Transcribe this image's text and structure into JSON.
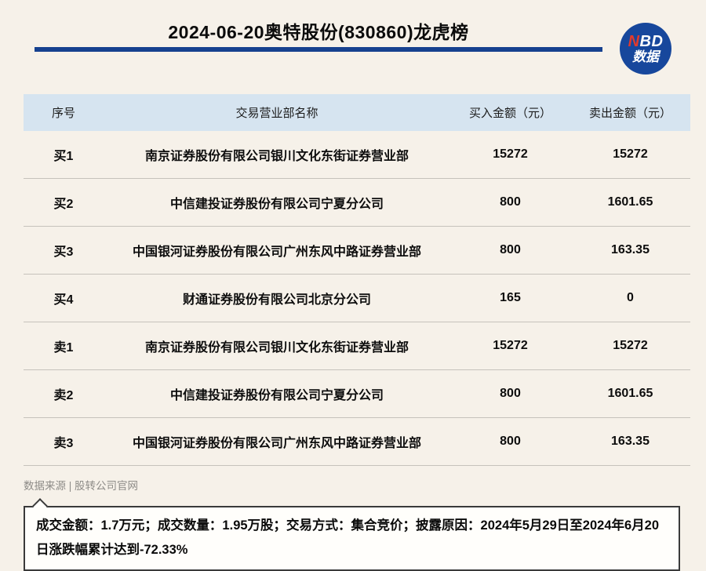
{
  "header": {
    "title": "2024-06-20奥特股份(830860)龙虎榜",
    "logo": {
      "line1_first": "N",
      "line1_rest": "BD",
      "line2": "数据"
    }
  },
  "table": {
    "columns": [
      "序号",
      "交易营业部名称",
      "买入金额（元）",
      "卖出金额（元）"
    ],
    "rows": [
      {
        "rank": "买1",
        "broker": "南京证券股份有限公司银川文化东街证券营业部",
        "buy": "15272",
        "sell": "15272"
      },
      {
        "rank": "买2",
        "broker": "中信建投证券股份有限公司宁夏分公司",
        "buy": "800",
        "sell": "1601.65"
      },
      {
        "rank": "买3",
        "broker": "中国银河证券股份有限公司广州东风中路证券营业部",
        "buy": "800",
        "sell": "163.35"
      },
      {
        "rank": "买4",
        "broker": "财通证券股份有限公司北京分公司",
        "buy": "165",
        "sell": "0"
      },
      {
        "rank": "卖1",
        "broker": "南京证券股份有限公司银川文化东街证券营业部",
        "buy": "15272",
        "sell": "15272"
      },
      {
        "rank": "卖2",
        "broker": "中信建投证券股份有限公司宁夏分公司",
        "buy": "800",
        "sell": "1601.65"
      },
      {
        "rank": "卖3",
        "broker": "中国银河证券股份有限公司广州东风中路证券营业部",
        "buy": "800",
        "sell": "163.35"
      }
    ]
  },
  "footer": {
    "source": "数据来源 | 股转公司官网",
    "note": "成交金额：1.7万元；成交数量：1.95万股；交易方式：集合竞价；披露原因：2024年5月29日至2024年6月20日涨跌幅累计达到-72.33%"
  },
  "colors": {
    "page_bg": "#f6f1e9",
    "accent_blue": "#16418f",
    "logo_blue": "#17479c",
    "logo_red": "#e23a2c",
    "table_header_bg": "#d6e4f0"
  }
}
